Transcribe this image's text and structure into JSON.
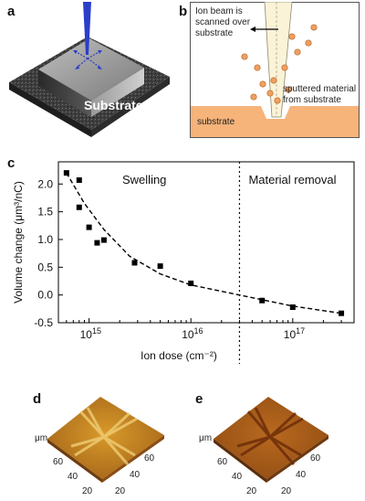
{
  "panels": {
    "a": {
      "letter": "a",
      "label": "Substrate"
    },
    "b": {
      "letter": "b",
      "beam_line1": "Ion beam is",
      "beam_line2": "scanned over",
      "beam_line3": "substrate",
      "sputter_line1": "sputtered material",
      "sputter_line2": "from substrate",
      "substrate": "substrate"
    },
    "c": {
      "letter": "c"
    },
    "d": {
      "letter": "d",
      "unit": "μm",
      "ticks_left": [
        "60",
        "40",
        "20"
      ],
      "ticks_right": [
        "60",
        "40",
        "20"
      ]
    },
    "e": {
      "letter": "e",
      "unit": "μm",
      "ticks_left": [
        "60",
        "40",
        "20"
      ],
      "ticks_right": [
        "60",
        "40",
        "20"
      ]
    }
  },
  "colors": {
    "substrate_orange": "#f6b37a",
    "particle_orange": "#f0a060",
    "beam_blue": "#2b3fc9",
    "afm_d": "#c48a1e",
    "afm_e": "#a35a18"
  },
  "chart_data": {
    "type": "scatter",
    "xscale": "log",
    "xlabel": "Ion dose (cm⁻²)",
    "ylabel": "Volume change (μm³/nC)",
    "xlim": [
      500000000000000.0,
      4e+17
    ],
    "ylim": [
      -0.5,
      2.4
    ],
    "yticks": [
      "-0.5",
      "0.0",
      "0.5",
      "1.0",
      "1.5",
      "2.0"
    ],
    "ytick_values": [
      -0.5,
      0.0,
      0.5,
      1.0,
      1.5,
      2.0
    ],
    "xticks": [
      {
        "value": 1000000000000000.0,
        "base": "10",
        "exp": "15"
      },
      {
        "value": 1e+16,
        "base": "10",
        "exp": "16"
      },
      {
        "value": 1e+17,
        "base": "10",
        "exp": "17"
      }
    ],
    "regions": [
      "Swelling",
      "Material removal"
    ],
    "boundary_x": 3e+16,
    "points": [
      {
        "x": 600000000000000.0,
        "y": 2.2
      },
      {
        "x": 800000000000000.0,
        "y": 2.07
      },
      {
        "x": 800000000000000.0,
        "y": 1.58
      },
      {
        "x": 1000000000000000.0,
        "y": 1.22
      },
      {
        "x": 1200000000000000.0,
        "y": 0.94
      },
      {
        "x": 1400000000000000.0,
        "y": 0.99
      },
      {
        "x": 2800000000000000.0,
        "y": 0.58
      },
      {
        "x": 5000000000000000.0,
        "y": 0.52
      },
      {
        "x": 1e+16,
        "y": 0.21
      },
      {
        "x": 5e+16,
        "y": -0.1
      },
      {
        "x": 1e+17,
        "y": -0.22
      },
      {
        "x": 3e+17,
        "y": -0.33
      }
    ],
    "trend": [
      {
        "x": 600000000000000.0,
        "y": 2.2
      },
      {
        "x": 900000000000000.0,
        "y": 1.65
      },
      {
        "x": 1400000000000000.0,
        "y": 1.18
      },
      {
        "x": 2500000000000000.0,
        "y": 0.7
      },
      {
        "x": 5000000000000000.0,
        "y": 0.38
      },
      {
        "x": 1e+16,
        "y": 0.18
      },
      {
        "x": 3e+16,
        "y": 0.0
      },
      {
        "x": 1e+17,
        "y": -0.2
      },
      {
        "x": 3e+17,
        "y": -0.33
      }
    ]
  }
}
